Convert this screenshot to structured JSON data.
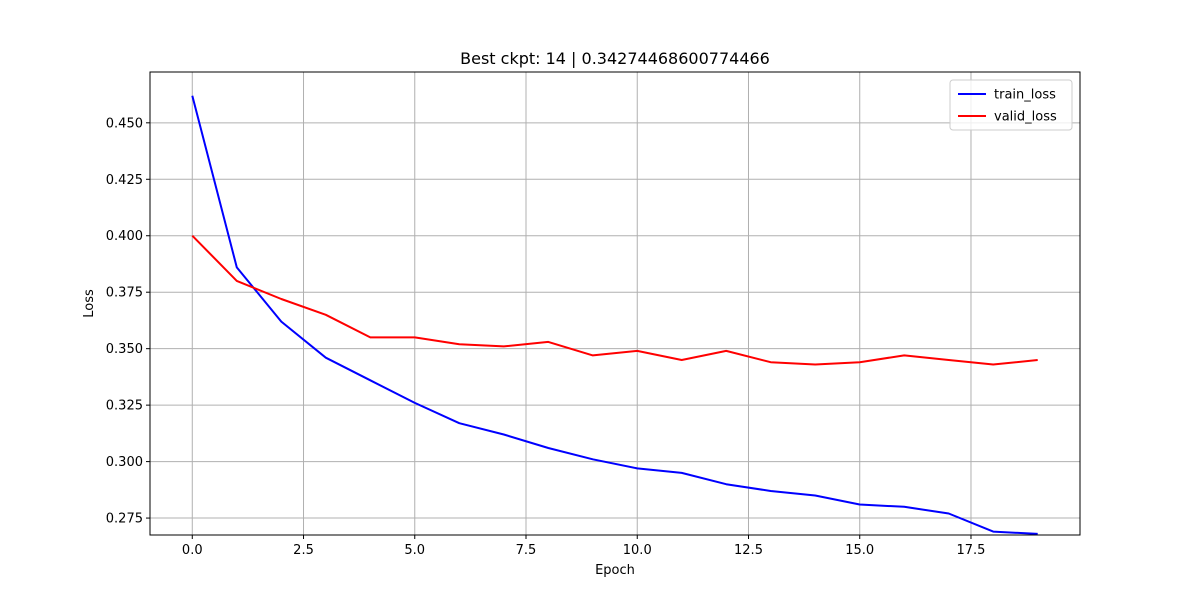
{
  "chart_data": {
    "type": "line",
    "title": "Best ckpt: 14 | 0.34274468600774466",
    "xlabel": "Epoch",
    "ylabel": "Loss",
    "xlim": [
      -0.95,
      19.95
    ],
    "ylim": [
      0.2675,
      0.4725
    ],
    "xticks": [
      0.0,
      2.5,
      5.0,
      7.5,
      10.0,
      12.5,
      15.0,
      17.5
    ],
    "xtick_labels": [
      "0.0",
      "2.5",
      "5.0",
      "7.5",
      "10.0",
      "12.5",
      "15.0",
      "17.5"
    ],
    "yticks": [
      0.275,
      0.3,
      0.325,
      0.35,
      0.375,
      0.4,
      0.425,
      0.45
    ],
    "ytick_labels": [
      "0.275",
      "0.300",
      "0.325",
      "0.350",
      "0.375",
      "0.400",
      "0.425",
      "0.450"
    ],
    "grid": true,
    "legend_position": "top-right",
    "x": [
      0,
      1,
      2,
      3,
      4,
      5,
      6,
      7,
      8,
      9,
      10,
      11,
      12,
      13,
      14,
      15,
      16,
      17,
      18,
      19
    ],
    "series": [
      {
        "name": "train_loss",
        "color": "#0000ff",
        "values": [
          0.462,
          0.386,
          0.362,
          0.346,
          0.336,
          0.326,
          0.317,
          0.312,
          0.306,
          0.301,
          0.297,
          0.295,
          0.29,
          0.287,
          0.285,
          0.281,
          0.28,
          0.277,
          0.269,
          0.268
        ]
      },
      {
        "name": "valid_loss",
        "color": "#ff0000",
        "values": [
          0.4,
          0.38,
          0.372,
          0.365,
          0.355,
          0.355,
          0.352,
          0.351,
          0.353,
          0.347,
          0.349,
          0.345,
          0.349,
          0.344,
          0.343,
          0.344,
          0.347,
          0.345,
          0.343,
          0.345
        ]
      }
    ]
  }
}
